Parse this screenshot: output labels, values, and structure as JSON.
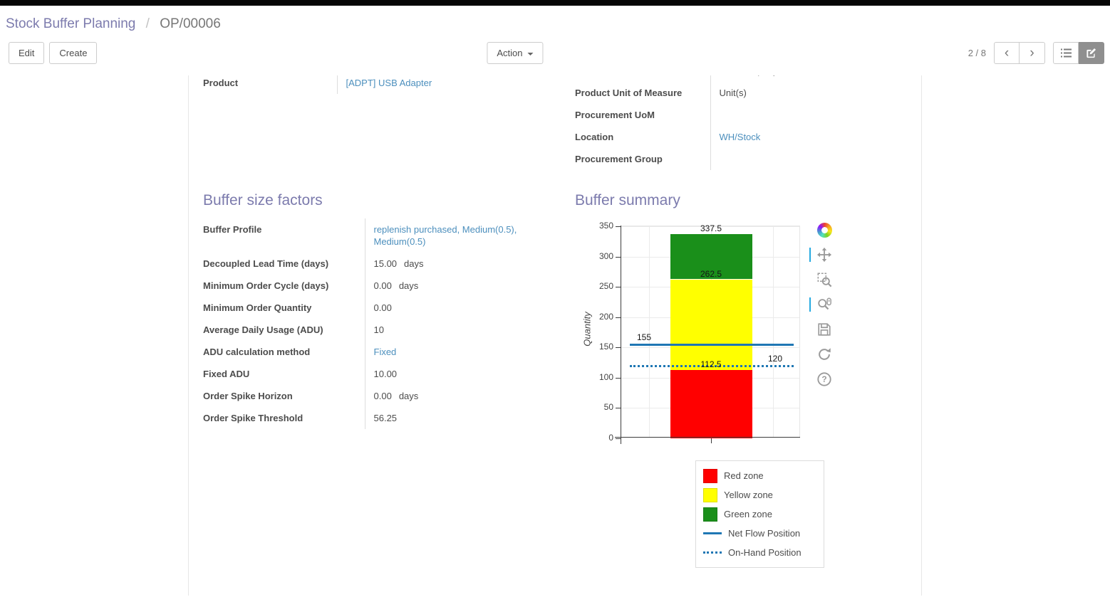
{
  "breadcrumb": {
    "parent": "Stock Buffer Planning",
    "separator": "/",
    "current": "OP/00006"
  },
  "actions": {
    "edit": "Edit",
    "create": "Create",
    "action": "Action"
  },
  "pager": {
    "text": "2 / 8"
  },
  "form": {
    "left_group": {
      "rows": [
        {
          "label": "",
          "value": ""
        },
        {
          "label": "Product",
          "value": "[ADPT] USB Adapter",
          "link": true
        }
      ]
    },
    "right_group": {
      "rows": [
        {
          "label": "",
          "value": "YourCompany"
        },
        {
          "label": "Product Unit of Measure",
          "value": "Unit(s)"
        },
        {
          "label": "Procurement UoM",
          "value": ""
        },
        {
          "label": "Location",
          "value": "WH/Stock",
          "link": true
        },
        {
          "label": "Procurement Group",
          "value": ""
        }
      ]
    },
    "buffer_factors": {
      "title": "Buffer size factors",
      "rows": [
        {
          "label": "Buffer Profile",
          "value": "replenish purchased, Medium(0.5), Medium(0.5)",
          "link": true
        },
        {
          "label": "Decoupled Lead Time (days)",
          "value": "15.00",
          "suffix": "days"
        },
        {
          "label": "Minimum Order Cycle (days)",
          "value": "0.00",
          "suffix": "days"
        },
        {
          "label": "Minimum Order Quantity",
          "value": "0.00"
        },
        {
          "label": "Average Daily Usage (ADU)",
          "value": "10"
        },
        {
          "label": "ADU calculation method",
          "value": "Fixed",
          "link": true
        },
        {
          "label": "Fixed ADU",
          "value": "10.00"
        },
        {
          "label": "Order Spike Horizon",
          "value": "0.00",
          "suffix": "days"
        },
        {
          "label": "Order Spike Threshold",
          "value": "56.25"
        }
      ]
    },
    "buffer_summary": {
      "title": "Buffer summary"
    }
  },
  "chart_data": {
    "type": "bar",
    "title": "",
    "ylabel": "Quantity",
    "ylim": [
      0,
      350
    ],
    "yticks": [
      0,
      50,
      100,
      150,
      200,
      250,
      300,
      350
    ],
    "grid": true,
    "legend_position": "below-right",
    "zones": [
      {
        "name": "Red zone",
        "from": 0,
        "to": 112.5,
        "color": "#ff0000",
        "label": "112.5"
      },
      {
        "name": "Yellow zone",
        "from": 112.5,
        "to": 262.5,
        "color": "#ffff00",
        "label": "262.5"
      },
      {
        "name": "Green zone",
        "from": 262.5,
        "to": 337.5,
        "color": "#1a8f1a",
        "label": "337.5"
      }
    ],
    "lines": [
      {
        "name": "Net Flow Position",
        "value": 155,
        "style": "solid",
        "color": "#1f77b4",
        "label": "155",
        "label_pos": "left"
      },
      {
        "name": "On-Hand Position",
        "value": 120,
        "style": "dotted",
        "color": "#1f77b4",
        "label": "120",
        "label_pos": "right"
      }
    ],
    "legend": [
      {
        "label": "Red zone",
        "swatch": "square",
        "color": "#ff0000"
      },
      {
        "label": "Yellow zone",
        "swatch": "square",
        "color": "#ffff00"
      },
      {
        "label": "Green zone",
        "swatch": "square",
        "color": "#1a8f1a"
      },
      {
        "label": "Net Flow Position",
        "swatch": "line",
        "color": "#1f77b4"
      },
      {
        "label": "On-Hand Position",
        "swatch": "dotted",
        "color": "#1f77b4"
      }
    ],
    "toolbar": [
      {
        "name": "bokeh-logo",
        "active": false
      },
      {
        "name": "pan",
        "active": true
      },
      {
        "name": "box-zoom",
        "active": false
      },
      {
        "name": "wheel-zoom",
        "active": true
      },
      {
        "name": "save",
        "active": false
      },
      {
        "name": "reset",
        "active": false
      },
      {
        "name": "help",
        "active": false
      }
    ]
  }
}
